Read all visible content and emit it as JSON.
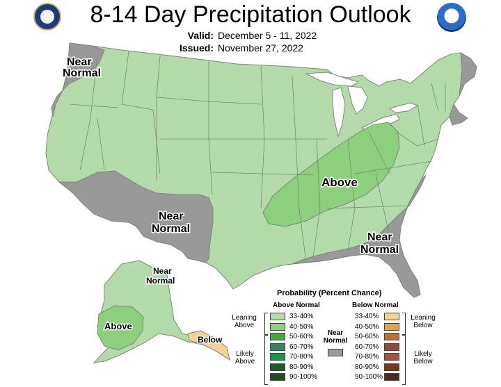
{
  "title": "8-14 Day Precipitation Outlook",
  "valid": {
    "label": "Valid:",
    "value": "December 5 - 11, 2022"
  },
  "issued": {
    "label": "Issued:",
    "value": "November 27, 2022"
  },
  "map_labels": {
    "near_normal_northwest_1": "Near",
    "near_normal_northwest_2": "Normal",
    "above_central": "Above",
    "near_normal_southwest_1": "Near",
    "near_normal_southwest_2": "Normal",
    "near_normal_southeast_1": "Near",
    "near_normal_southeast_2": "Normal",
    "near_normal_alaska_1": "Near",
    "near_normal_alaska_2": "Normal",
    "above_alaska": "Above",
    "below_alaska": "Below"
  },
  "legend": {
    "title": "Probability (Percent Chance)",
    "above_header": "Above Normal",
    "below_header": "Below Normal",
    "near_normal_1": "Near",
    "near_normal_2": "Normal",
    "leaning_above_1": "Leaning",
    "leaning_above_2": "Above",
    "likely_above_1": "Likely",
    "likely_above_2": "Above",
    "leaning_below_1": "Leaning",
    "leaning_below_2": "Below",
    "likely_below_1": "Likely",
    "likely_below_2": "Below",
    "above_bins": [
      {
        "label": "33-40%",
        "color": "#b3dbaa"
      },
      {
        "label": "40-50%",
        "color": "#8ccf7d"
      },
      {
        "label": "50-60%",
        "color": "#3fae3c"
      },
      {
        "label": "60-70%",
        "color": "#37845a"
      },
      {
        "label": "70-80%",
        "color": "#0f9a44"
      },
      {
        "label": "80-90%",
        "color": "#1f5a2f"
      },
      {
        "label": "90-100%",
        "color": "#284d1b"
      }
    ],
    "below_bins": [
      {
        "label": "33-40%",
        "color": "#f0d491"
      },
      {
        "label": "40-50%",
        "color": "#d9a54c"
      },
      {
        "label": "50-60%",
        "color": "#bd6f34"
      },
      {
        "label": "60-70%",
        "color": "#8f4a34"
      },
      {
        "label": "70-80%",
        "color": "#a7503d"
      },
      {
        "label": "80-90%",
        "color": "#7a3a10"
      },
      {
        "label": "90-100%",
        "color": "#4a2a22"
      }
    ],
    "near_normal_color": "#999999"
  },
  "colors": {
    "near_normal": "#999999",
    "leaning_above": "#b3dbaa",
    "above_40_50": "#8ccf7d",
    "leaning_below": "#f0d491",
    "state_lines": "#7a8a75",
    "water": "#ffffff"
  },
  "icons": {
    "left_seal": "doc-seal-icon",
    "right_seal": "noaa-logo-icon"
  }
}
